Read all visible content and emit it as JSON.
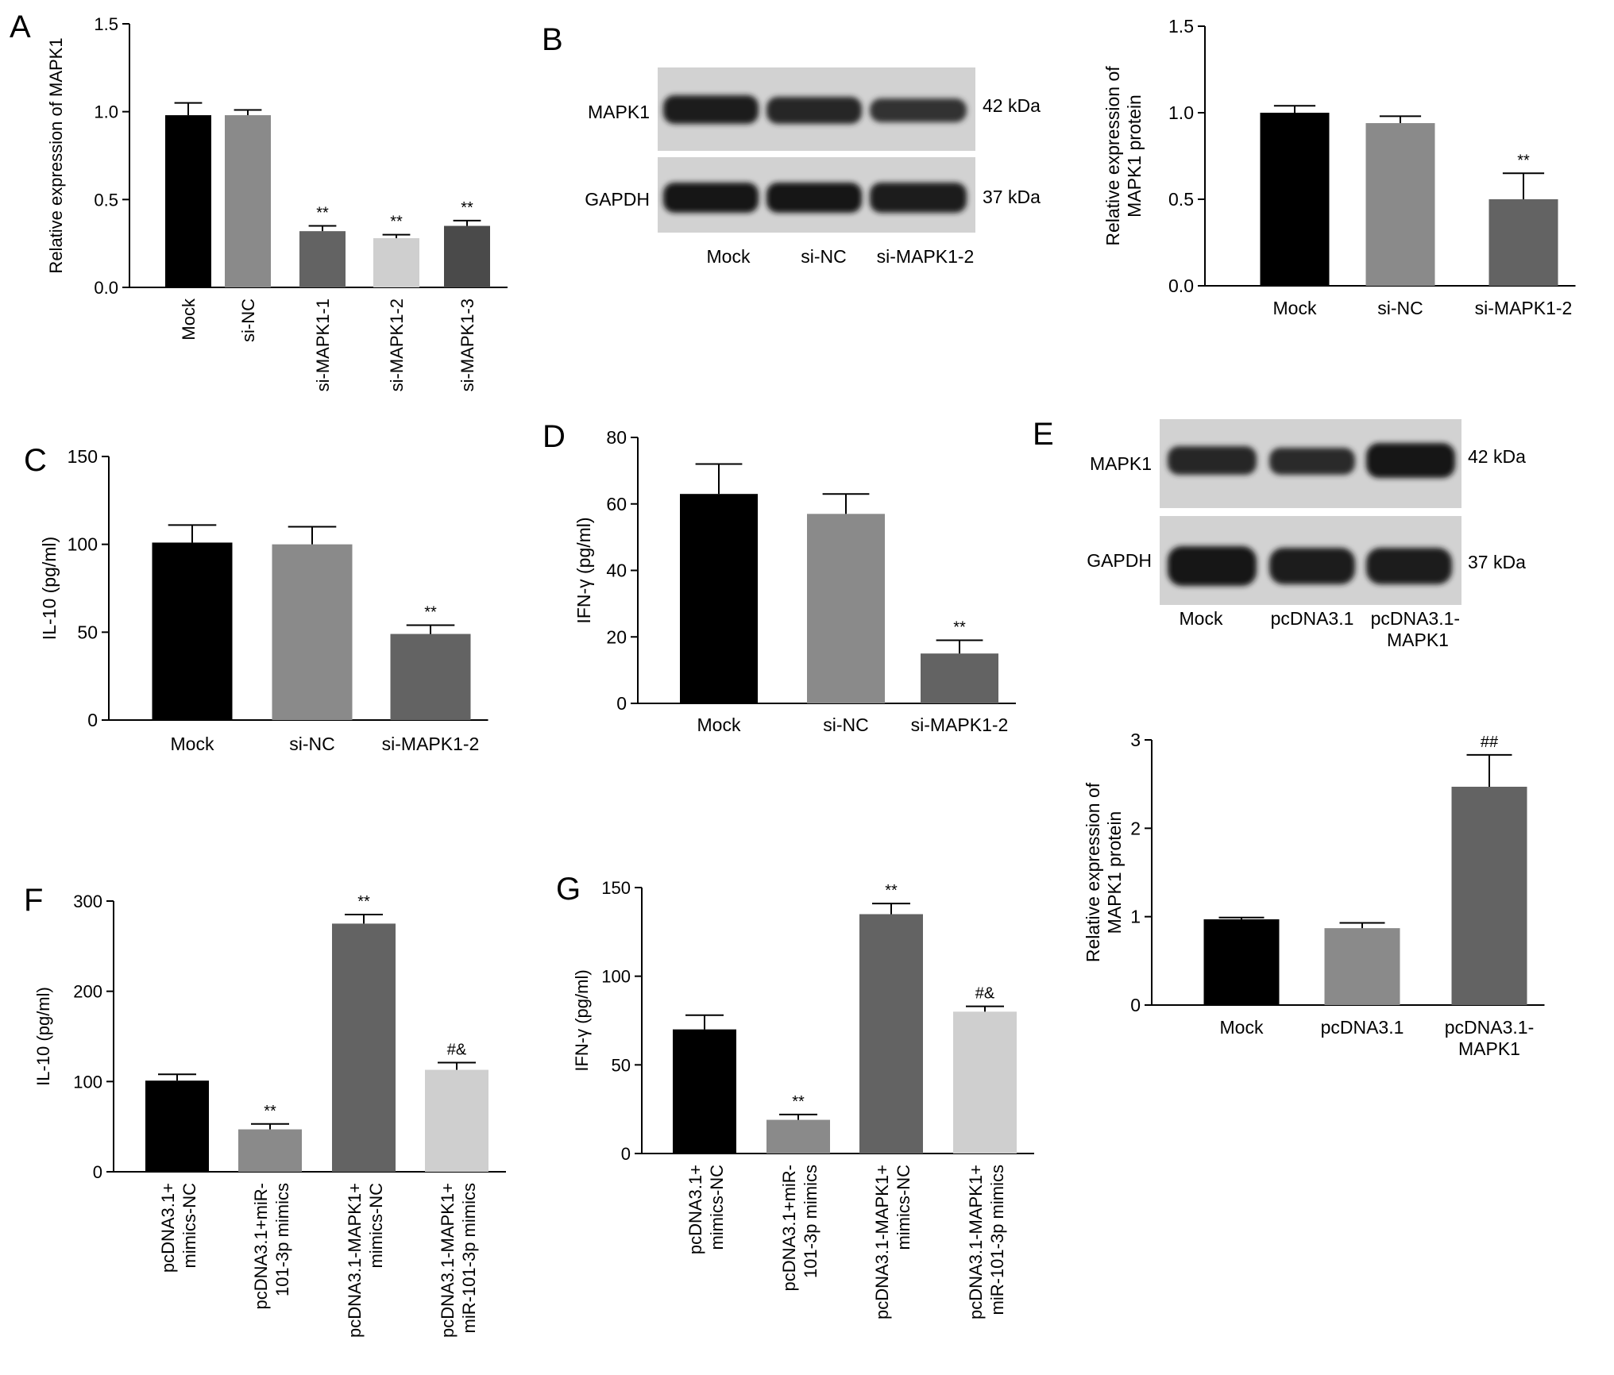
{
  "panel_letters": {
    "A": "A",
    "B": "B",
    "C": "C",
    "D": "D",
    "E": "E",
    "F": "F",
    "G": "G"
  },
  "colors": {
    "black": "#000000",
    "mid_gray": "#8a8a8a",
    "dark_gray": "#636363",
    "light_gray": "#cfcfcf",
    "darker_gray": "#4a4a4a"
  },
  "blots": {
    "B": {
      "rows": [
        "MAPK1",
        "GAPDH"
      ],
      "sizes": [
        "42 kDa",
        "37 kDa"
      ],
      "lanes": [
        "Mock",
        "si-NC",
        "si-MAPK1-2"
      ]
    },
    "E": {
      "rows": [
        "MAPK1",
        "GAPDH"
      ],
      "sizes": [
        "42 kDa",
        "37 kDa"
      ],
      "lanes": [
        "Mock",
        "pcDNA3.1",
        "pcDNA3.1-\nMAPK1"
      ]
    }
  },
  "chart_data": [
    {
      "panel": "A",
      "type": "bar",
      "ylabel": "Relative expression of MAPK1",
      "ylim": [
        0,
        1.5
      ],
      "yticks": [
        "0.0",
        "0.5",
        "1.0",
        "1.5"
      ],
      "categories": [
        "Mock",
        "si-NC",
        "si-MAPK1-1",
        "si-MAPK1-2",
        "si-MAPK1-3"
      ],
      "values": [
        0.98,
        0.98,
        0.32,
        0.28,
        0.35
      ],
      "errors": [
        0.07,
        0.03,
        0.03,
        0.02,
        0.03
      ],
      "annotations": [
        "",
        "",
        "**",
        "**",
        "**"
      ],
      "colors": [
        "#000000",
        "#8a8a8a",
        "#636363",
        "#cfcfcf",
        "#4a4a4a"
      ]
    },
    {
      "panel": "B",
      "type": "bar",
      "ylabel": "Relative expression of\nMAPK1 protein",
      "ylim": [
        0,
        1.5
      ],
      "yticks": [
        "0.0",
        "0.5",
        "1.0",
        "1.5"
      ],
      "categories": [
        "Mock",
        "si-NC",
        "si-MAPK1-2"
      ],
      "values": [
        1.0,
        0.94,
        0.5
      ],
      "errors": [
        0.04,
        0.04,
        0.15
      ],
      "annotations": [
        "",
        "",
        "**"
      ],
      "colors": [
        "#000000",
        "#8a8a8a",
        "#636363"
      ]
    },
    {
      "panel": "C",
      "type": "bar",
      "ylabel": "IL-10 (pg/ml)",
      "ylim": [
        0,
        150
      ],
      "yticks": [
        "0",
        "50",
        "100",
        "150"
      ],
      "categories": [
        "Mock",
        "si-NC",
        "si-MAPK1-2"
      ],
      "values": [
        101,
        100,
        49
      ],
      "errors": [
        10,
        10,
        5
      ],
      "annotations": [
        "",
        "",
        "**"
      ],
      "colors": [
        "#000000",
        "#8a8a8a",
        "#636363"
      ]
    },
    {
      "panel": "D",
      "type": "bar",
      "ylabel": "IFN-γ (pg/ml)",
      "ylim": [
        0,
        80
      ],
      "yticks": [
        "0",
        "20",
        "40",
        "60",
        "80"
      ],
      "categories": [
        "Mock",
        "si-NC",
        "si-MAPK1-2"
      ],
      "values": [
        63,
        57,
        15
      ],
      "errors": [
        9,
        6,
        4
      ],
      "annotations": [
        "",
        "",
        "**"
      ],
      "colors": [
        "#000000",
        "#8a8a8a",
        "#636363"
      ]
    },
    {
      "panel": "E",
      "type": "bar",
      "ylabel": "Relative expression of\nMAPK1 protein",
      "ylim": [
        0,
        3
      ],
      "yticks": [
        "0",
        "1",
        "2",
        "3"
      ],
      "categories": [
        "Mock",
        "pcDNA3.1",
        "pcDNA3.1-\nMAPK1"
      ],
      "values": [
        0.97,
        0.87,
        2.47
      ],
      "errors": [
        0.02,
        0.06,
        0.36
      ],
      "annotations": [
        "",
        "",
        "##"
      ],
      "colors": [
        "#000000",
        "#8a8a8a",
        "#636363"
      ]
    },
    {
      "panel": "F",
      "type": "bar",
      "ylabel": "IL-10 (pg/ml)",
      "ylim": [
        0,
        300
      ],
      "yticks": [
        "0",
        "100",
        "200",
        "300"
      ],
      "categories": [
        "pcDNA3.1+\nmimics-NC",
        "pcDNA3.1+miR-\n101-3p mimics",
        "pcDNA3.1-MAPK1+\nmimics-NC",
        "pcDNA3.1-MAPK1+\nmiR-101-3p mimics"
      ],
      "values": [
        101,
        47,
        275,
        113
      ],
      "errors": [
        7,
        6,
        10,
        8
      ],
      "annotations": [
        "",
        "**",
        "**",
        "#&"
      ],
      "colors": [
        "#000000",
        "#8a8a8a",
        "#636363",
        "#cfcfcf"
      ]
    },
    {
      "panel": "G",
      "type": "bar",
      "ylabel": "IFN-γ (pg/ml)",
      "ylim": [
        0,
        150
      ],
      "yticks": [
        "0",
        "50",
        "100",
        "150"
      ],
      "categories": [
        "pcDNA3.1+\nmimics-NC",
        "pcDNA3.1+miR-\n101-3p mimics",
        "pcDNA3.1-MAPK1+\nmimics-NC",
        "pcDNA3.1-MAPK1+\nmiR-101-3p mimics"
      ],
      "values": [
        70,
        19,
        135,
        80
      ],
      "errors": [
        8,
        3,
        6,
        3
      ],
      "annotations": [
        "",
        "**",
        "**",
        "#&"
      ],
      "colors": [
        "#000000",
        "#8a8a8a",
        "#636363",
        "#cfcfcf"
      ]
    }
  ]
}
